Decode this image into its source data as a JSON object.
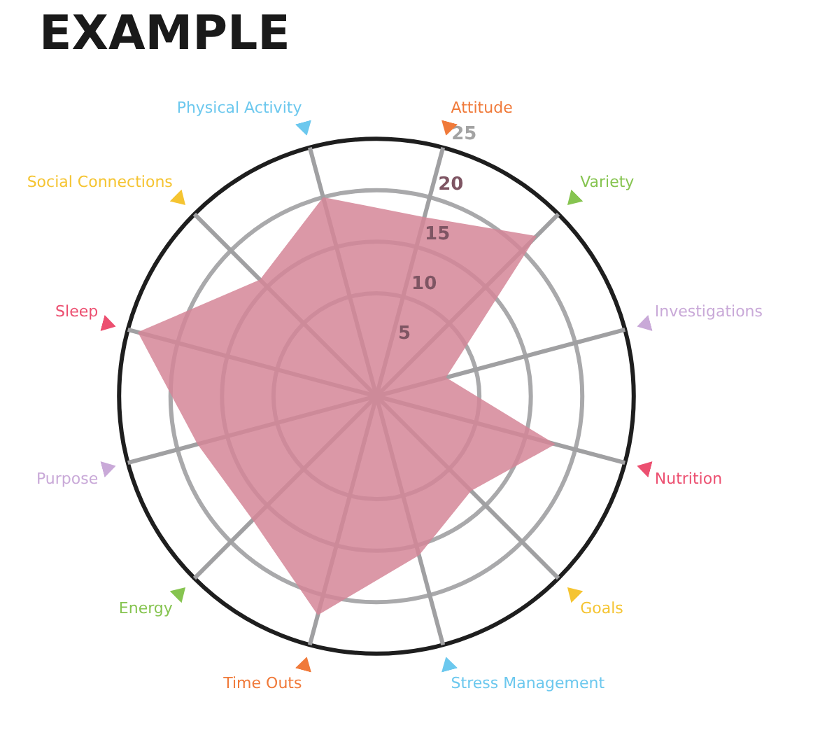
{
  "chart_data": {
    "type": "radar",
    "title": "EXAMPLE",
    "categories": [
      "Attitude",
      "Variety",
      "Investigations",
      "Nutrition",
      "Goals",
      "Stress Management",
      "Time Outs",
      "Energy",
      "Purpose",
      "Sleep",
      "Social Connections",
      "Physical Activity"
    ],
    "colors": [
      "#f07a3a",
      "#86c450",
      "#c9a9d8",
      "#ec4f70",
      "#f5c431",
      "#6cc8ee",
      "#f07a3a",
      "#86c450",
      "#c9a9d8",
      "#ec4f70",
      "#f5c431",
      "#6cc8ee"
    ],
    "series": [
      {
        "color": "#d58698",
        "values": [
          18,
          22,
          7,
          18,
          13,
          16,
          22,
          17,
          18,
          24,
          16,
          20
        ]
      }
    ],
    "ylim": [
      0,
      25
    ],
    "yticks": [
      5,
      10,
      15,
      20,
      25
    ],
    "grid": true,
    "legend": false,
    "marker": "none"
  }
}
